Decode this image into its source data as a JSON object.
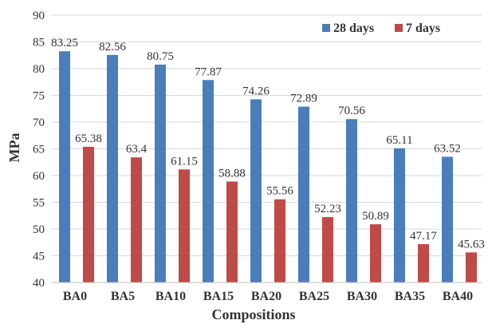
{
  "chart_data": {
    "type": "bar",
    "categories": [
      "BA0",
      "BA5",
      "BA10",
      "BA15",
      "BA20",
      "BA25",
      "BA30",
      "BA35",
      "BA40"
    ],
    "series": [
      {
        "name": "28 days",
        "color": "#4a7ebb",
        "values": [
          83.25,
          82.56,
          80.75,
          77.87,
          74.26,
          72.89,
          70.56,
          65.11,
          63.52
        ],
        "labels": [
          "83.25",
          "82.56",
          "80.75",
          "77.87",
          "74.26",
          "72.89",
          "70.56",
          "65.11",
          "63.52"
        ]
      },
      {
        "name": "7 days",
        "color": "#be4b48",
        "values": [
          65.38,
          63.4,
          61.15,
          58.88,
          55.56,
          52.23,
          50.89,
          47.17,
          45.63
        ],
        "labels": [
          "65.38",
          "63.4",
          "61.15",
          "58.88",
          "55.56",
          "52.23",
          "50.89",
          "47.17",
          "45.63"
        ]
      }
    ],
    "xlabel": "Compositions",
    "ylabel": "MPa",
    "ylim": [
      40,
      90
    ],
    "yticks": [
      40,
      45,
      50,
      55,
      60,
      65,
      70,
      75,
      80,
      85,
      90
    ],
    "grid": true,
    "legend_position": "top-right"
  }
}
